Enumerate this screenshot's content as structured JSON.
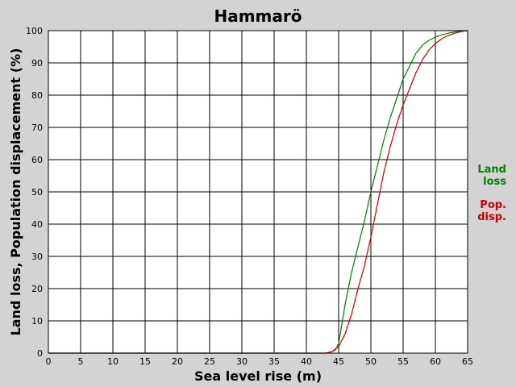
{
  "chart_data": {
    "type": "line",
    "title": "Hammarö",
    "xlabel": "Sea level rise (m)",
    "ylabel": "Land loss, Population displacement (%)",
    "xlim": [
      0,
      65
    ],
    "ylim": [
      0,
      100
    ],
    "grid": true,
    "legend_position": "right",
    "x_ticks": [
      "0",
      "5",
      "10",
      "15",
      "20",
      "25",
      "30",
      "35",
      "40",
      "45",
      "50",
      "55",
      "60",
      "65"
    ],
    "y_ticks": [
      "0",
      "10",
      "20",
      "30",
      "40",
      "50",
      "60",
      "70",
      "80",
      "90",
      "100"
    ],
    "series": [
      {
        "name_lines": [
          "Land",
          "loss"
        ],
        "color": "#008000",
        "x": [
          0,
          40,
          43,
          44,
          44.5,
          45,
          46,
          47,
          48,
          49,
          50,
          51,
          52,
          53,
          54,
          55,
          56,
          57,
          58,
          59,
          60,
          61,
          62,
          63,
          64,
          65
        ],
        "y": [
          0,
          0,
          0,
          0.5,
          1,
          3,
          15,
          25,
          33,
          41,
          50,
          58,
          66,
          73,
          79,
          85,
          89,
          93,
          95.5,
          97,
          98,
          98.7,
          99.2,
          99.6,
          99.9,
          100
        ]
      },
      {
        "name_lines": [
          "Pop.",
          "disp."
        ],
        "color": "#cc0000",
        "x": [
          0,
          40,
          43,
          44,
          45,
          46,
          47,
          48,
          49,
          50,
          51,
          52,
          53,
          54,
          55,
          56,
          57,
          58,
          59,
          60,
          61,
          62,
          63,
          64,
          65
        ],
        "y": [
          0,
          0,
          0,
          0.5,
          2,
          6,
          12,
          20,
          27,
          36,
          46,
          56,
          64,
          71,
          77,
          82,
          87,
          91,
          94,
          96,
          97.5,
          98.5,
          99.2,
          99.7,
          100
        ]
      }
    ]
  }
}
